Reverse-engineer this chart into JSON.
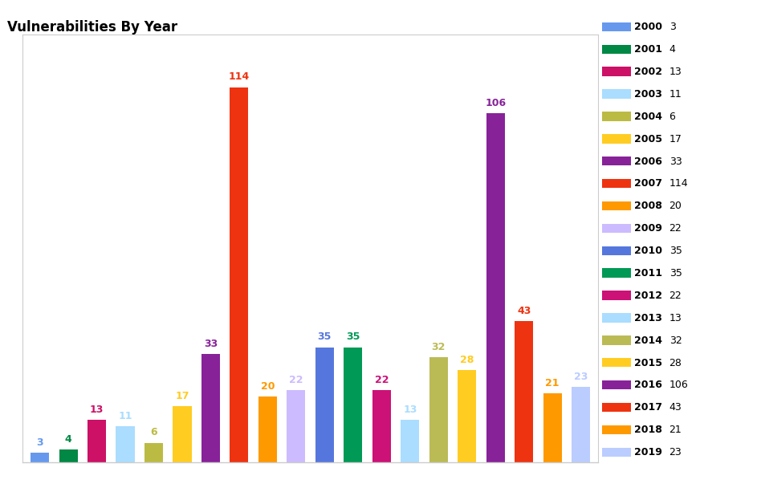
{
  "title": "Vulnerabilities By Year",
  "years": [
    2000,
    2001,
    2002,
    2003,
    2004,
    2005,
    2006,
    2007,
    2008,
    2009,
    2010,
    2011,
    2012,
    2013,
    2014,
    2015,
    2016,
    2017,
    2018,
    2019
  ],
  "values": [
    3,
    4,
    13,
    11,
    6,
    17,
    33,
    114,
    20,
    22,
    35,
    35,
    22,
    13,
    32,
    28,
    106,
    43,
    21,
    23
  ],
  "bar_colors": [
    "#6699ee",
    "#008844",
    "#cc1166",
    "#aaddff",
    "#bbbb44",
    "#ffcc22",
    "#882299",
    "#ee3311",
    "#ff9900",
    "#ccbbff",
    "#5577dd",
    "#009955",
    "#cc1177",
    "#aaddff",
    "#bbbb55",
    "#ffcc22",
    "#882299",
    "#ee3311",
    "#ff9900",
    "#bbccff"
  ],
  "title_fontsize": 12,
  "legend_fontsize": 9,
  "bar_label_fontsize": 9,
  "ylim": [
    0,
    130
  ],
  "background_color": "#ffffff",
  "spine_color": "#cccccc"
}
